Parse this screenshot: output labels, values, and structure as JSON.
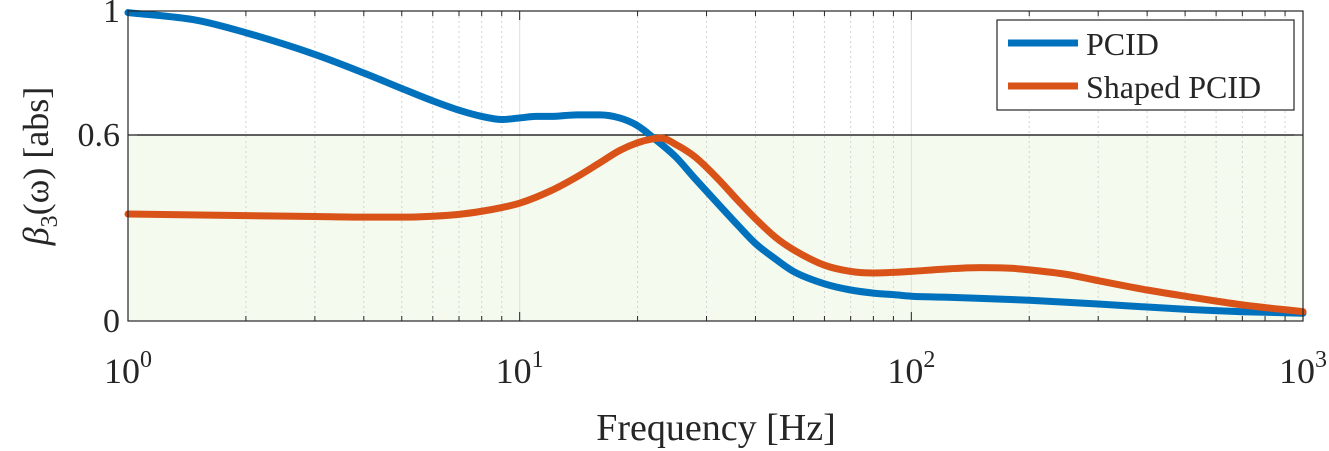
{
  "chart_data": {
    "type": "line",
    "title": "",
    "xlabel": "Frequency [Hz]",
    "ylabel": {
      "base": "β",
      "subscript": "3",
      "rest": "(ω) [abs]"
    },
    "xscale": "log",
    "xlim": [
      1,
      1000
    ],
    "ylim": [
      0,
      1
    ],
    "x_ticks": [
      {
        "value": 1,
        "base": "10",
        "exp": "0"
      },
      {
        "value": 10,
        "base": "10",
        "exp": "1"
      },
      {
        "value": 100,
        "base": "10",
        "exp": "2"
      },
      {
        "value": 1000,
        "base": "10",
        "exp": "3"
      }
    ],
    "y_ticks": [
      {
        "value": 0,
        "label": "0"
      },
      {
        "value": 0.6,
        "label": "0.6"
      },
      {
        "value": 1,
        "label": "1"
      }
    ],
    "threshold": {
      "value": 0.6,
      "fill_color": "#f4faee"
    },
    "grid": "x-minor",
    "legend_position": "top-right",
    "series": [
      {
        "name": "PCID",
        "color": "#0072BD",
        "x": [
          1,
          1.5,
          2,
          3,
          4,
          5,
          6,
          7,
          8,
          9,
          10,
          11,
          12,
          14,
          16,
          18,
          20,
          22,
          25,
          28,
          32,
          36,
          40,
          45,
          50,
          60,
          70,
          80,
          90,
          100,
          120,
          150,
          200,
          300,
          400,
          500,
          700,
          1000
        ],
        "values": [
          0.995,
          0.97,
          0.93,
          0.86,
          0.8,
          0.75,
          0.71,
          0.68,
          0.66,
          0.65,
          0.655,
          0.66,
          0.66,
          0.665,
          0.665,
          0.655,
          0.63,
          0.59,
          0.53,
          0.46,
          0.38,
          0.31,
          0.25,
          0.2,
          0.16,
          0.12,
          0.1,
          0.09,
          0.085,
          0.08,
          0.077,
          0.073,
          0.067,
          0.055,
          0.045,
          0.038,
          0.03,
          0.025
        ]
      },
      {
        "name": "Shaped PCID",
        "color": "#D95319",
        "x": [
          1,
          2,
          3,
          4,
          5,
          6,
          7,
          8,
          9,
          10,
          12,
          14,
          16,
          18,
          20,
          22,
          23,
          25,
          28,
          32,
          36,
          40,
          45,
          50,
          60,
          70,
          80,
          100,
          120,
          150,
          180,
          200,
          250,
          300,
          400,
          500,
          700,
          1000
        ],
        "values": [
          0.345,
          0.34,
          0.337,
          0.335,
          0.335,
          0.338,
          0.344,
          0.354,
          0.366,
          0.38,
          0.42,
          0.465,
          0.51,
          0.55,
          0.575,
          0.588,
          0.59,
          0.57,
          0.53,
          0.46,
          0.39,
          0.33,
          0.27,
          0.23,
          0.18,
          0.16,
          0.155,
          0.16,
          0.167,
          0.172,
          0.17,
          0.165,
          0.15,
          0.13,
          0.1,
          0.08,
          0.052,
          0.03
        ]
      }
    ]
  }
}
